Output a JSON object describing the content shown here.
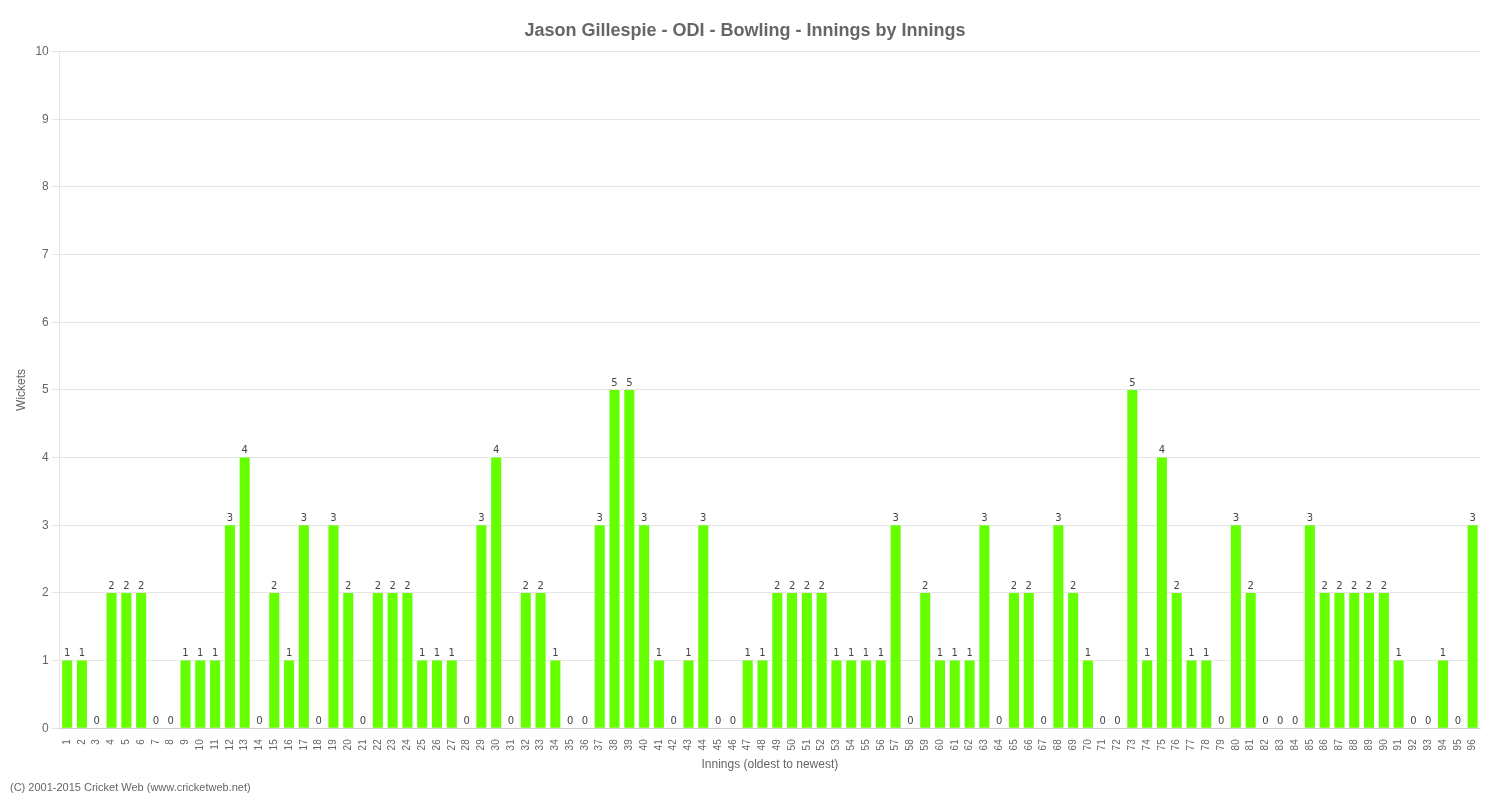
{
  "chart_data": {
    "type": "bar",
    "title": "Jason Gillespie - ODI - Bowling - Innings by Innings",
    "xlabel": "Innings (oldest to newest)",
    "ylabel": "Wickets",
    "footnote": "(C) 2001-2015 Cricket Web (www.cricketweb.net)",
    "categories": [
      "1",
      "2",
      "3",
      "4",
      "5",
      "6",
      "7",
      "8",
      "9",
      "10",
      "11",
      "12",
      "13",
      "14",
      "15",
      "16",
      "17",
      "18",
      "19",
      "20",
      "21",
      "22",
      "23",
      "24",
      "25",
      "26",
      "27",
      "28",
      "29",
      "30",
      "31",
      "32",
      "33",
      "34",
      "35",
      "36",
      "37",
      "38",
      "39",
      "40",
      "41",
      "42",
      "43",
      "44",
      "45",
      "46",
      "47",
      "48",
      "49",
      "50",
      "51",
      "52",
      "53",
      "54",
      "55",
      "56",
      "57",
      "58",
      "59",
      "60",
      "61",
      "62",
      "63",
      "64",
      "65",
      "66",
      "67",
      "68",
      "69",
      "70",
      "71",
      "72",
      "73",
      "74",
      "75",
      "76",
      "77",
      "78",
      "79",
      "80",
      "81",
      "82",
      "83",
      "84",
      "85",
      "86",
      "87",
      "88",
      "89",
      "90",
      "91",
      "92",
      "93",
      "94",
      "95",
      "96"
    ],
    "values": [
      1,
      1,
      0,
      2,
      2,
      2,
      0,
      0,
      1,
      1,
      1,
      3,
      4,
      0,
      2,
      1,
      3,
      0,
      3,
      2,
      0,
      2,
      2,
      2,
      1,
      1,
      1,
      0,
      3,
      4,
      0,
      2,
      2,
      1,
      0,
      0,
      3,
      5,
      5,
      3,
      1,
      0,
      1,
      3,
      0,
      0,
      1,
      1,
      2,
      2,
      2,
      2,
      1,
      1,
      1,
      1,
      3,
      0,
      2,
      1,
      1,
      1,
      3,
      0,
      2,
      2,
      0,
      3,
      2,
      1,
      0,
      0,
      5,
      1,
      4,
      2,
      1,
      1,
      0,
      3,
      2,
      0,
      0,
      0,
      3,
      2,
      2,
      2,
      2,
      2,
      1,
      0,
      0,
      1,
      0,
      3
    ],
    "color": "#66ff00",
    "ylim": [
      0,
      10
    ],
    "yticks": [
      0,
      1,
      2,
      3,
      4,
      5,
      6,
      7,
      8,
      9,
      10
    ],
    "grid": true,
    "data_labels": true
  }
}
